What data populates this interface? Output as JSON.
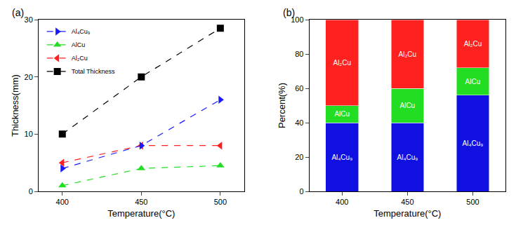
{
  "chart_data": [
    {
      "type": "line",
      "title": "(a)",
      "x_label": "Temperature(°C)",
      "y_label": "Thickness(mm)",
      "x": [
        400,
        450,
        500
      ],
      "xlim": [
        385,
        515
      ],
      "xticks": [
        400,
        450,
        500
      ],
      "ylim": [
        0,
        30
      ],
      "yticks": [
        0,
        10,
        20,
        30
      ],
      "legend": "top-left",
      "line_style": "dashed",
      "series": [
        {
          "name": "Total Thickness",
          "color": "#000000",
          "marker": "square",
          "values": [
            10,
            20,
            28.5
          ]
        },
        {
          "name": "Al₂Cu",
          "color": "#ff2020",
          "marker": "triangle-left",
          "values": [
            5,
            8,
            8
          ]
        },
        {
          "name": "AlCu",
          "color": "#22dd22",
          "marker": "triangle-up",
          "values": [
            1,
            4,
            4.5
          ]
        },
        {
          "name": "Al₄Cu₉",
          "color": "#1a1aff",
          "marker": "triangle-right",
          "values": [
            4,
            8,
            16
          ]
        }
      ]
    },
    {
      "type": "bar",
      "title": "(b)",
      "stacked": true,
      "x_label": "Temperature(°C)",
      "y_label": "Percent(%)",
      "categories": [
        "400",
        "450",
        "500"
      ],
      "ylim": [
        0,
        100
      ],
      "yticks": [
        0,
        20,
        40,
        60,
        80,
        100
      ],
      "series": [
        {
          "name": "Al₄Cu₉",
          "color": "#1010e0",
          "values": [
            40,
            40,
            56
          ]
        },
        {
          "name": "AlCu",
          "color": "#22dd22",
          "values": [
            10,
            20,
            16
          ]
        },
        {
          "name": "Al₂Cu",
          "color": "#ff2020",
          "values": [
            50,
            40,
            28
          ]
        }
      ]
    }
  ]
}
